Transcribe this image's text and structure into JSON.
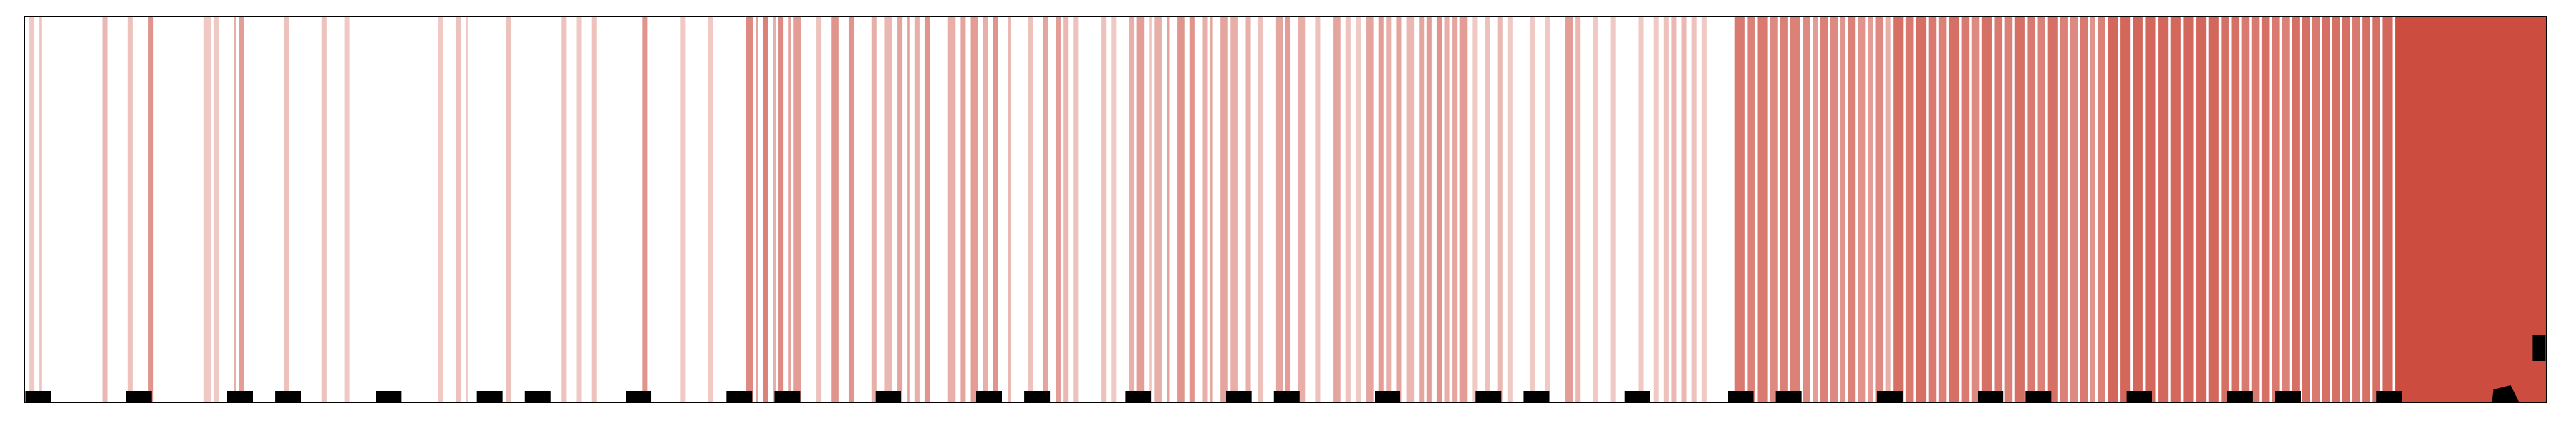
{
  "chart_data": {
    "type": "barcode",
    "title": "",
    "xlabel": "",
    "ylabel": "",
    "grid": false,
    "legend": "none",
    "x_range": [
      0,
      1000
    ],
    "colors": {
      "stripe": "#cc4c3f",
      "marker": "#000000",
      "frame": "#000000",
      "background": "#ffffff"
    },
    "stripes": [
      {
        "x": 2,
        "w": 2,
        "a": 0.3
      },
      {
        "x": 6,
        "w": 1,
        "a": 0.35
      },
      {
        "x": 31,
        "w": 2,
        "a": 0.4
      },
      {
        "x": 41,
        "w": 2,
        "a": 0.35
      },
      {
        "x": 49,
        "w": 2,
        "a": 0.6
      },
      {
        "x": 71,
        "w": 3,
        "a": 0.3
      },
      {
        "x": 75,
        "w": 2,
        "a": 0.3
      },
      {
        "x": 83,
        "w": 1,
        "a": 0.45
      },
      {
        "x": 85,
        "w": 2,
        "a": 0.55
      },
      {
        "x": 103,
        "w": 2,
        "a": 0.35
      },
      {
        "x": 118,
        "w": 2,
        "a": 0.35
      },
      {
        "x": 127,
        "w": 2,
        "a": 0.3
      },
      {
        "x": 164,
        "w": 2,
        "a": 0.3
      },
      {
        "x": 171,
        "w": 2,
        "a": 0.35
      },
      {
        "x": 175,
        "w": 1,
        "a": 0.3
      },
      {
        "x": 191,
        "w": 2,
        "a": 0.35
      },
      {
        "x": 213,
        "w": 2,
        "a": 0.35
      },
      {
        "x": 219,
        "w": 2,
        "a": 0.3
      },
      {
        "x": 225,
        "w": 2,
        "a": 0.35
      },
      {
        "x": 245,
        "w": 2,
        "a": 0.6
      },
      {
        "x": 260,
        "w": 2,
        "a": 0.3
      },
      {
        "x": 271,
        "w": 2,
        "a": 0.3
      },
      {
        "x": 286,
        "w": 3,
        "a": 0.65
      },
      {
        "x": 290,
        "w": 1,
        "a": 0.5
      },
      {
        "x": 293,
        "w": 2,
        "a": 0.7
      },
      {
        "x": 297,
        "w": 1,
        "a": 0.45
      },
      {
        "x": 299,
        "w": 2,
        "a": 0.65
      },
      {
        "x": 303,
        "w": 1,
        "a": 0.5
      },
      {
        "x": 305,
        "w": 3,
        "a": 0.55
      },
      {
        "x": 314,
        "w": 2,
        "a": 0.35
      },
      {
        "x": 320,
        "w": 3,
        "a": 0.6
      },
      {
        "x": 327,
        "w": 2,
        "a": 0.6
      },
      {
        "x": 336,
        "w": 2,
        "a": 0.45
      },
      {
        "x": 341,
        "w": 3,
        "a": 0.4
      },
      {
        "x": 346,
        "w": 2,
        "a": 0.5
      },
      {
        "x": 350,
        "w": 1,
        "a": 0.55
      },
      {
        "x": 353,
        "w": 2,
        "a": 0.45
      },
      {
        "x": 357,
        "w": 2,
        "a": 0.6
      },
      {
        "x": 366,
        "w": 3,
        "a": 0.45
      },
      {
        "x": 371,
        "w": 2,
        "a": 0.5
      },
      {
        "x": 375,
        "w": 3,
        "a": 0.55
      },
      {
        "x": 380,
        "w": 2,
        "a": 0.45
      },
      {
        "x": 384,
        "w": 2,
        "a": 0.6
      },
      {
        "x": 390,
        "w": 1,
        "a": 0.4
      },
      {
        "x": 398,
        "w": 2,
        "a": 0.35
      },
      {
        "x": 404,
        "w": 2,
        "a": 0.5
      },
      {
        "x": 409,
        "w": 2,
        "a": 0.55
      },
      {
        "x": 412,
        "w": 2,
        "a": 0.4
      },
      {
        "x": 416,
        "w": 2,
        "a": 0.35
      },
      {
        "x": 427,
        "w": 2,
        "a": 0.35
      },
      {
        "x": 431,
        "w": 2,
        "a": 0.3
      },
      {
        "x": 438,
        "w": 2,
        "a": 0.45
      },
      {
        "x": 441,
        "w": 3,
        "a": 0.55
      },
      {
        "x": 446,
        "w": 1,
        "a": 0.35
      },
      {
        "x": 448,
        "w": 3,
        "a": 0.45
      },
      {
        "x": 453,
        "w": 1,
        "a": 0.5
      },
      {
        "x": 457,
        "w": 3,
        "a": 0.6
      },
      {
        "x": 462,
        "w": 2,
        "a": 0.6
      },
      {
        "x": 467,
        "w": 2,
        "a": 0.45
      },
      {
        "x": 470,
        "w": 1,
        "a": 0.5
      },
      {
        "x": 474,
        "w": 3,
        "a": 0.5
      },
      {
        "x": 478,
        "w": 3,
        "a": 0.45
      },
      {
        "x": 484,
        "w": 2,
        "a": 0.45
      },
      {
        "x": 489,
        "w": 2,
        "a": 0.35
      },
      {
        "x": 496,
        "w": 3,
        "a": 0.5
      },
      {
        "x": 500,
        "w": 2,
        "a": 0.55
      },
      {
        "x": 505,
        "w": 3,
        "a": 0.45
      },
      {
        "x": 512,
        "w": 2,
        "a": 0.35
      },
      {
        "x": 519,
        "w": 3,
        "a": 0.5
      },
      {
        "x": 524,
        "w": 2,
        "a": 0.35
      },
      {
        "x": 528,
        "w": 2,
        "a": 0.3
      },
      {
        "x": 532,
        "w": 3,
        "a": 0.5
      },
      {
        "x": 537,
        "w": 2,
        "a": 0.55
      },
      {
        "x": 540,
        "w": 2,
        "a": 0.45
      },
      {
        "x": 544,
        "w": 2,
        "a": 0.5
      },
      {
        "x": 548,
        "w": 3,
        "a": 0.4
      },
      {
        "x": 553,
        "w": 2,
        "a": 0.5
      },
      {
        "x": 556,
        "w": 2,
        "a": 0.55
      },
      {
        "x": 560,
        "w": 2,
        "a": 0.6
      },
      {
        "x": 563,
        "w": 2,
        "a": 0.45
      },
      {
        "x": 566,
        "w": 2,
        "a": 0.5
      },
      {
        "x": 569,
        "w": 3,
        "a": 0.55
      },
      {
        "x": 574,
        "w": 2,
        "a": 0.3
      },
      {
        "x": 579,
        "w": 2,
        "a": 0.35
      },
      {
        "x": 584,
        "w": 2,
        "a": 0.4
      },
      {
        "x": 588,
        "w": 2,
        "a": 0.3
      },
      {
        "x": 597,
        "w": 2,
        "a": 0.3
      },
      {
        "x": 603,
        "w": 2,
        "a": 0.3
      },
      {
        "x": 611,
        "w": 3,
        "a": 0.55
      },
      {
        "x": 615,
        "w": 2,
        "a": 0.4
      },
      {
        "x": 622,
        "w": 2,
        "a": 0.3
      },
      {
        "x": 629,
        "w": 2,
        "a": 0.3
      },
      {
        "x": 640,
        "w": 2,
        "a": 0.3
      },
      {
        "x": 646,
        "w": 2,
        "a": 0.3
      },
      {
        "x": 650,
        "w": 2,
        "a": 0.35
      },
      {
        "x": 653,
        "w": 2,
        "a": 0.4
      },
      {
        "x": 657,
        "w": 2,
        "a": 0.4
      },
      {
        "x": 661,
        "w": 2,
        "a": 0.35
      },
      {
        "x": 665,
        "w": 2,
        "a": 0.3
      },
      {
        "x": 678,
        "w": 4,
        "a": 0.75
      },
      {
        "x": 683,
        "w": 3,
        "a": 0.7
      },
      {
        "x": 687,
        "w": 4,
        "a": 0.75
      },
      {
        "x": 692,
        "w": 3,
        "a": 0.65
      },
      {
        "x": 696,
        "w": 3,
        "a": 0.7
      },
      {
        "x": 700,
        "w": 4,
        "a": 0.7
      },
      {
        "x": 705,
        "w": 3,
        "a": 0.65
      },
      {
        "x": 709,
        "w": 2,
        "a": 0.55
      },
      {
        "x": 712,
        "w": 3,
        "a": 0.7
      },
      {
        "x": 716,
        "w": 3,
        "a": 0.65
      },
      {
        "x": 720,
        "w": 2,
        "a": 0.6
      },
      {
        "x": 723,
        "w": 3,
        "a": 0.7
      },
      {
        "x": 727,
        "w": 3,
        "a": 0.6
      },
      {
        "x": 731,
        "w": 2,
        "a": 0.55
      },
      {
        "x": 734,
        "w": 3,
        "a": 0.65
      },
      {
        "x": 738,
        "w": 2,
        "a": 0.45
      },
      {
        "x": 741,
        "w": 4,
        "a": 0.8
      },
      {
        "x": 746,
        "w": 3,
        "a": 0.75
      },
      {
        "x": 750,
        "w": 4,
        "a": 0.8
      },
      {
        "x": 755,
        "w": 3,
        "a": 0.75
      },
      {
        "x": 759,
        "w": 3,
        "a": 0.7
      },
      {
        "x": 763,
        "w": 4,
        "a": 0.8
      },
      {
        "x": 768,
        "w": 3,
        "a": 0.75
      },
      {
        "x": 772,
        "w": 3,
        "a": 0.65
      },
      {
        "x": 776,
        "w": 4,
        "a": 0.8
      },
      {
        "x": 781,
        "w": 3,
        "a": 0.75
      },
      {
        "x": 785,
        "w": 3,
        "a": 0.7
      },
      {
        "x": 789,
        "w": 4,
        "a": 0.8
      },
      {
        "x": 794,
        "w": 3,
        "a": 0.75
      },
      {
        "x": 798,
        "w": 3,
        "a": 0.7
      },
      {
        "x": 802,
        "w": 4,
        "a": 0.8
      },
      {
        "x": 807,
        "w": 3,
        "a": 0.7
      },
      {
        "x": 811,
        "w": 3,
        "a": 0.65
      },
      {
        "x": 815,
        "w": 3,
        "a": 0.75
      },
      {
        "x": 819,
        "w": 2,
        "a": 0.6
      },
      {
        "x": 822,
        "w": 3,
        "a": 0.7
      },
      {
        "x": 826,
        "w": 4,
        "a": 0.85
      },
      {
        "x": 831,
        "w": 4,
        "a": 0.85
      },
      {
        "x": 836,
        "w": 4,
        "a": 0.85
      },
      {
        "x": 841,
        "w": 4,
        "a": 0.85
      },
      {
        "x": 846,
        "w": 4,
        "a": 0.85
      },
      {
        "x": 851,
        "w": 4,
        "a": 0.85
      },
      {
        "x": 856,
        "w": 4,
        "a": 0.85
      },
      {
        "x": 861,
        "w": 4,
        "a": 0.85
      },
      {
        "x": 866,
        "w": 4,
        "a": 0.85
      },
      {
        "x": 871,
        "w": 3,
        "a": 0.8
      },
      {
        "x": 875,
        "w": 3,
        "a": 0.8
      },
      {
        "x": 879,
        "w": 3,
        "a": 0.75
      },
      {
        "x": 883,
        "w": 3,
        "a": 0.75
      },
      {
        "x": 887,
        "w": 3,
        "a": 0.8
      },
      {
        "x": 891,
        "w": 3,
        "a": 0.75
      },
      {
        "x": 895,
        "w": 3,
        "a": 0.7
      },
      {
        "x": 899,
        "w": 3,
        "a": 0.8
      },
      {
        "x": 903,
        "w": 3,
        "a": 0.8
      },
      {
        "x": 907,
        "w": 3,
        "a": 0.75
      },
      {
        "x": 911,
        "w": 3,
        "a": 0.8
      },
      {
        "x": 915,
        "w": 3,
        "a": 0.8
      },
      {
        "x": 919,
        "w": 3,
        "a": 0.8
      },
      {
        "x": 923,
        "w": 3,
        "a": 0.75
      },
      {
        "x": 927,
        "w": 3,
        "a": 0.8
      },
      {
        "x": 931,
        "w": 3,
        "a": 0.8
      },
      {
        "x": 935,
        "w": 4,
        "a": 0.85
      },
      {
        "x": 940,
        "w": 60,
        "a": 1.0
      }
    ],
    "markers": [
      {
        "x": 5.5,
        "style": "bar"
      },
      {
        "x": 45.5,
        "style": "bar"
      },
      {
        "x": 85.5,
        "style": "bar"
      },
      {
        "x": 104.5,
        "style": "bar"
      },
      {
        "x": 144.5,
        "style": "bar"
      },
      {
        "x": 184.5,
        "style": "bar"
      },
      {
        "x": 203.5,
        "style": "bar"
      },
      {
        "x": 243.5,
        "style": "bar"
      },
      {
        "x": 283.5,
        "style": "bar"
      },
      {
        "x": 302.5,
        "style": "bar"
      },
      {
        "x": 342.5,
        "style": "bar"
      },
      {
        "x": 382.5,
        "style": "bar"
      },
      {
        "x": 401.5,
        "style": "bar"
      },
      {
        "x": 441.5,
        "style": "bar"
      },
      {
        "x": 481.5,
        "style": "bar"
      },
      {
        "x": 500.5,
        "style": "bar"
      },
      {
        "x": 540.5,
        "style": "bar"
      },
      {
        "x": 580.5,
        "style": "bar"
      },
      {
        "x": 599.5,
        "style": "bar"
      },
      {
        "x": 639.5,
        "style": "bar"
      },
      {
        "x": 680.5,
        "style": "bar"
      },
      {
        "x": 699.5,
        "style": "bar"
      },
      {
        "x": 739.5,
        "style": "bar"
      },
      {
        "x": 779.5,
        "style": "bar"
      },
      {
        "x": 798.5,
        "style": "bar"
      },
      {
        "x": 838.5,
        "style": "bar"
      },
      {
        "x": 878.5,
        "style": "bar"
      },
      {
        "x": 897.5,
        "style": "bar"
      },
      {
        "x": 937.5,
        "style": "bar"
      },
      {
        "x": 984,
        "style": "wedge"
      },
      {
        "x": 997,
        "style": "end"
      }
    ]
  }
}
